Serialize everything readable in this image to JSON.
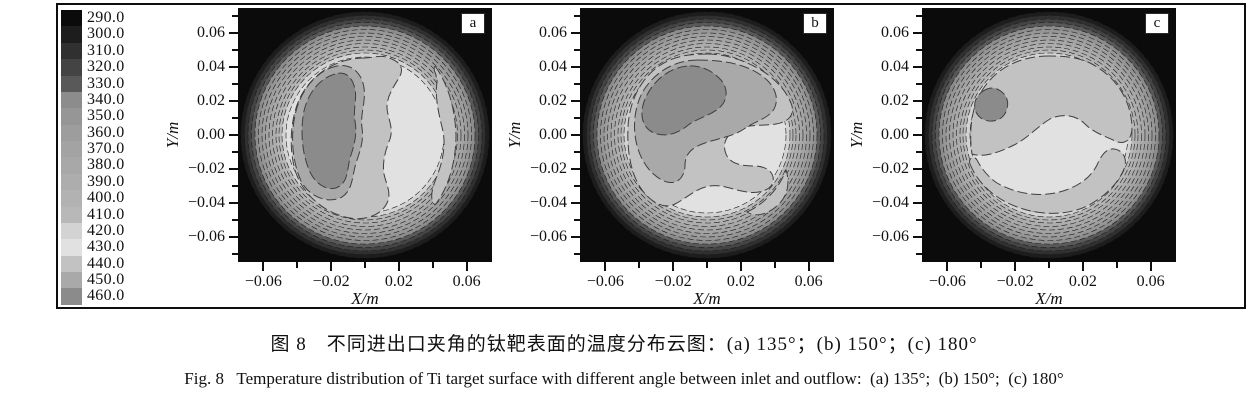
{
  "captions": {
    "chinese": "图 8　不同进出口夹角的钛靶表面的温度分布云图：(a) 135°；(b) 150°；(c) 180°",
    "english": "Fig. 8   Temperature distribution of Ti target surface with different angle between inlet and outflow:  (a) 135°;  (b) 150°;  (c) 180°"
  },
  "chart_data": {
    "type": "heatmap",
    "subtype": "filled-contour temperature maps, 3 panels, grayscale",
    "panels": [
      {
        "label": "a",
        "angle": "135°",
        "hot_region": "large 460-level zone left of center, cool light lobe on right"
      },
      {
        "label": "b",
        "angle": "150°",
        "hot_region": "460-level zone in upper left, light yin-yang lobe lower right"
      },
      {
        "label": "c",
        "angle": "180°",
        "hot_region": "small 460-level spot near x=-0.035, y=0.02; light lobe bottom center"
      }
    ],
    "axes": {
      "x_label": "X/m",
      "y_label": "Y/m",
      "x_range": [
        -0.075,
        0.075
      ],
      "y_range": [
        -0.075,
        0.075
      ],
      "x_major": [
        {
          "value": -0.06,
          "label": "−0.06"
        },
        {
          "value": -0.02,
          "label": "−0.02"
        },
        {
          "value": 0.02,
          "label": "0.02"
        },
        {
          "value": 0.06,
          "label": "0.06"
        }
      ],
      "x_minor": [
        -0.04,
        0,
        0.04
      ],
      "y_major": [
        {
          "value": 0.06,
          "label": "0.06"
        },
        {
          "value": 0.04,
          "label": "0.04"
        },
        {
          "value": 0.02,
          "label": "0.02"
        },
        {
          "value": 0,
          "label": "0.00"
        },
        {
          "value": -0.02,
          "label": "−0.02"
        },
        {
          "value": -0.04,
          "label": "−0.04"
        },
        {
          "value": -0.06,
          "label": "−0.06"
        }
      ],
      "y_minor": [
        0.07,
        0.05,
        0.03,
        0.01,
        -0.01,
        -0.03,
        -0.05,
        -0.07
      ],
      "grid": "off",
      "ticks": "outward, majors labeled"
    },
    "colorbar": {
      "position": "left",
      "levels": [
        "290.0",
        "300.0",
        "310.0",
        "320.0",
        "330.0",
        "340.0",
        "350.0",
        "360.0",
        "370.0",
        "380.0",
        "390.0",
        "400.0",
        "410.0",
        "420.0",
        "430.0",
        "440.0",
        "450.0",
        "460.0"
      ],
      "colors": [
        "#0b0b0b",
        "#1d1d1d",
        "#303030",
        "#444444",
        "#595959",
        "#8c8c8c",
        "#969696",
        "#9d9d9d",
        "#a3a3a3",
        "#a8a8a8",
        "#adadad",
        "#b2b2b2",
        "#b8b8b8",
        "#d3d3d3",
        "#e1e1e1",
        "#c2c2c2",
        "#a9a9a9",
        "#8b8b8b"
      ]
    }
  }
}
